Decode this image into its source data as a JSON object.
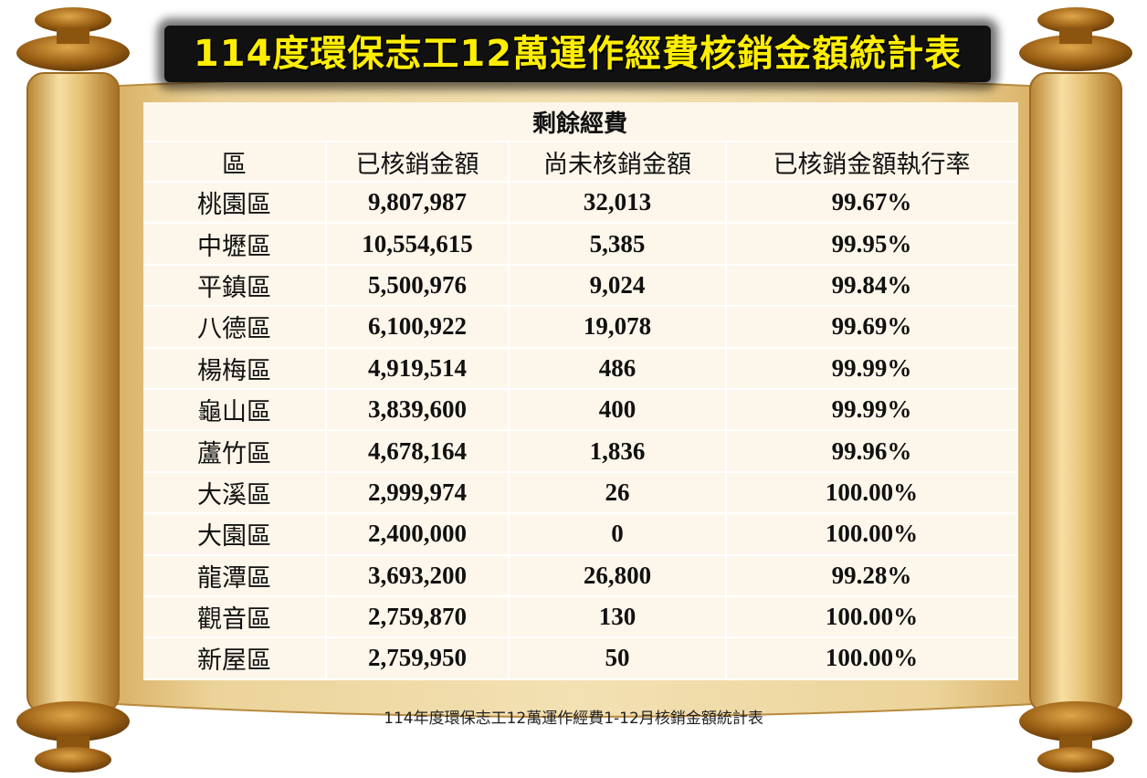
{
  "title": "114度環保志工12萬運作經費核銷金額統計表",
  "table": {
    "group_header": "剩餘經費",
    "columns": [
      "區",
      "已核銷金額",
      "尚未核銷金額",
      "已核銷金額執行率"
    ],
    "rows": [
      {
        "district": "桃園區",
        "spent": "9,807,987",
        "remaining": "32,013",
        "rate": "99.67%"
      },
      {
        "district": "中壢區",
        "spent": "10,554,615",
        "remaining": "5,385",
        "rate": "99.95%"
      },
      {
        "district": "平鎮區",
        "spent": "5,500,976",
        "remaining": "9,024",
        "rate": "99.84%"
      },
      {
        "district": "八德區",
        "spent": "6,100,922",
        "remaining": "19,078",
        "rate": "99.69%"
      },
      {
        "district": "楊梅區",
        "spent": "4,919,514",
        "remaining": "486",
        "rate": "99.99%"
      },
      {
        "district": "龜山區",
        "spent": "3,839,600",
        "remaining": "400",
        "rate": "99.99%"
      },
      {
        "district": "蘆竹區",
        "spent": "4,678,164",
        "remaining": "1,836",
        "rate": "99.96%"
      },
      {
        "district": "大溪區",
        "spent": "2,999,974",
        "remaining": "26",
        "rate": "100.00%"
      },
      {
        "district": "大園區",
        "spent": "2,400,000",
        "remaining": "0",
        "rate": "100.00%"
      },
      {
        "district": "龍潭區",
        "spent": "3,693,200",
        "remaining": "26,800",
        "rate": "99.28%"
      },
      {
        "district": "觀音區",
        "spent": "2,759,870",
        "remaining": "130",
        "rate": "100.00%"
      },
      {
        "district": "新屋區",
        "spent": "2,759,950",
        "remaining": "50",
        "rate": "100.00%"
      }
    ]
  },
  "caption": "114年度環保志工12萬運作經費1-12月核銷金額統計表",
  "colors": {
    "title_text": "#ffee00",
    "parchment": "#e7c98a",
    "table_bg": "#fdf6ea"
  }
}
